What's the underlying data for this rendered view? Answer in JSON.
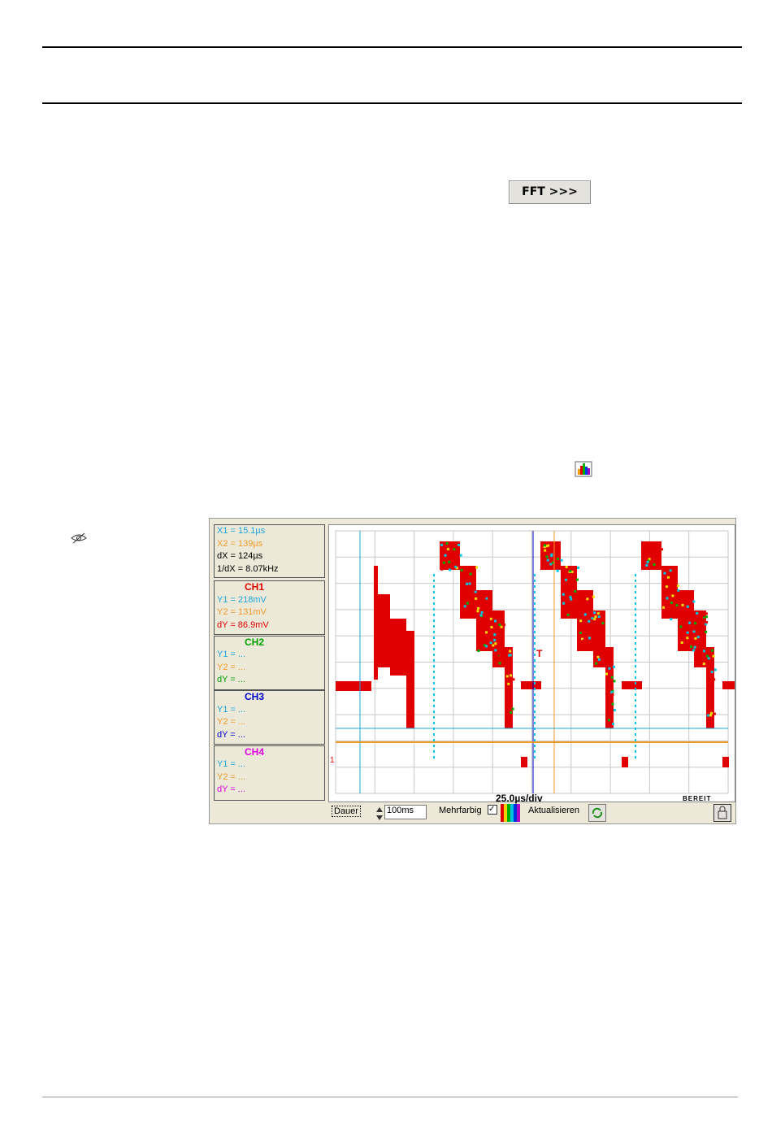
{
  "toolbar": {
    "fft_button": "FFT >>>"
  },
  "cursor_panel": {
    "x1": "X1 = 15.1µs",
    "x2": "X2 = 139µs",
    "dx": "dX = 124µs",
    "inv_dx": "1/dX = 8.07kHz"
  },
  "channels": [
    {
      "name": "CH1",
      "y1": "Y1 = 218mV",
      "y2": "Y2 = 131mV",
      "dy": "dY = 86.9mV"
    },
    {
      "name": "CH2",
      "y1": "Y1 = ...",
      "y2": "Y2 = ...",
      "dy": "dY = ..."
    },
    {
      "name": "CH3",
      "y1": "Y1 = ...",
      "y2": "Y2 = ...",
      "dy": "dY = ..."
    },
    {
      "name": "CH4",
      "y1": "Y1 = ...",
      "y2": "Y2 = ...",
      "dy": "dY = ..."
    }
  ],
  "plot": {
    "timebase": "25.0µs/div",
    "status": "BEREIT",
    "trigger_marker": "T",
    "channel_marker": "1"
  },
  "controls": {
    "duration_label": "Dauer",
    "duration_value": "100ms",
    "multicolor_label": "Mehrfarbig",
    "refresh_label": "Aktualisieren"
  }
}
